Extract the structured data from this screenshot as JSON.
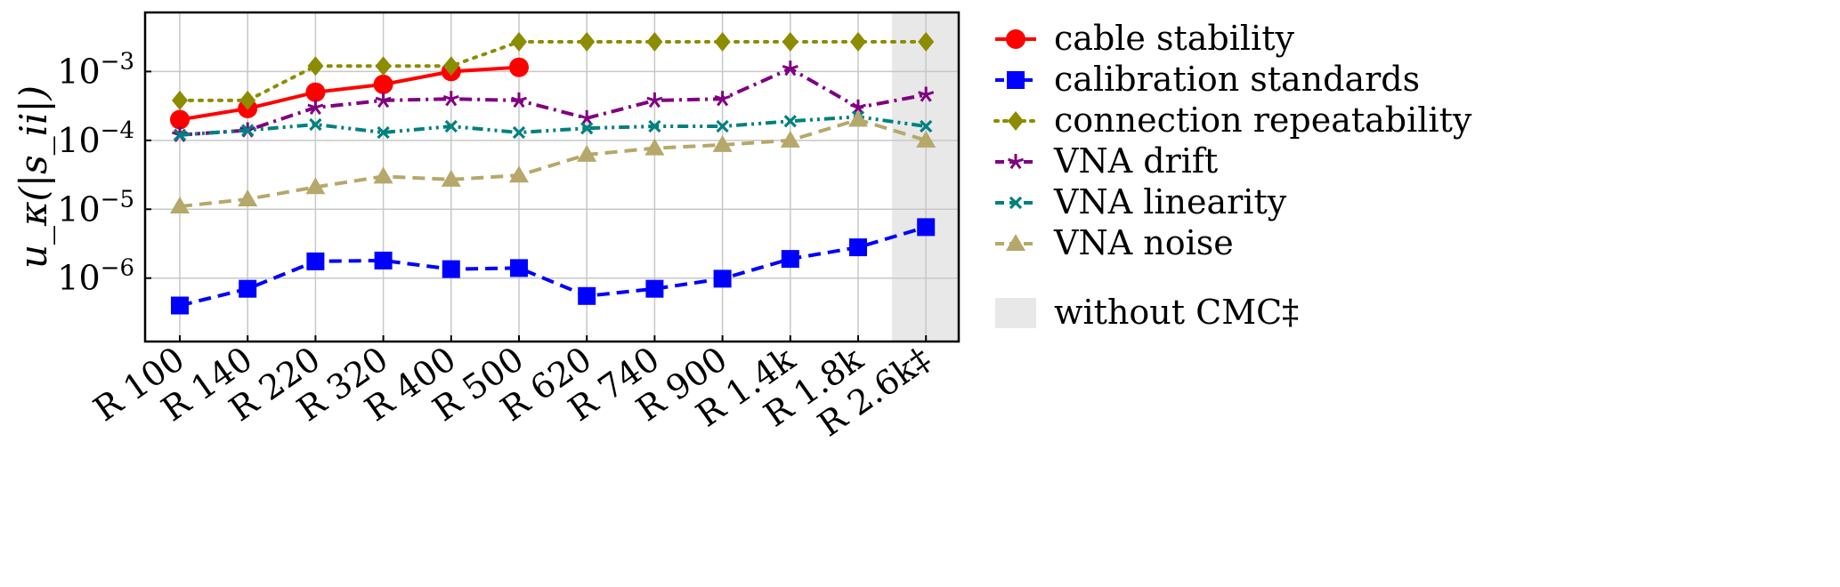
{
  "chart_data": {
    "type": "line",
    "ylabel": "u_κ(|s_ii|)",
    "yscale": "log",
    "ylim": [
      1.2e-07,
      0.0072
    ],
    "yticks": [
      {
        "value": 1e-06,
        "base": "10",
        "exp": "−6"
      },
      {
        "value": 1e-05,
        "base": "10",
        "exp": "−5"
      },
      {
        "value": 0.0001,
        "base": "10",
        "exp": "−4"
      },
      {
        "value": 0.001,
        "base": "10",
        "exp": "−3"
      }
    ],
    "grid": true,
    "legend_position": "right",
    "categories": [
      "R 100",
      "R 140",
      "R 220",
      "R 320",
      "R 400",
      "R 500",
      "R 620",
      "R 740",
      "R 900",
      "R 1.4k",
      "R 1.8k",
      "R 2.6k‡"
    ],
    "shaded_category": "R 2.6k‡",
    "series": [
      {
        "name": "cable stability",
        "color": "#ff0000",
        "marker": "circle",
        "dash": "solid",
        "values": [
          0.0002,
          0.00029,
          0.0005,
          0.00065,
          0.001,
          0.00115,
          null,
          null,
          null,
          null,
          null,
          null
        ]
      },
      {
        "name": "calibration standards",
        "color": "#0000ff",
        "marker": "square",
        "dash": "dashed",
        "values": [
          4e-07,
          7e-07,
          1.75e-06,
          1.8e-06,
          1.35e-06,
          1.4e-06,
          5.5e-07,
          7e-07,
          9.8e-07,
          1.9e-06,
          2.8e-06,
          5.5e-06
        ]
      },
      {
        "name": "connection repeatability",
        "color": "#8c8c00",
        "marker": "diamond",
        "dash": "dotted",
        "values": [
          0.00038,
          0.00038,
          0.0012,
          0.0012,
          0.0012,
          0.0027,
          0.0027,
          0.0027,
          0.0027,
          0.0027,
          0.0027,
          0.0027
        ]
      },
      {
        "name": "VNA drift",
        "color": "#800080",
        "marker": "star",
        "dash": "dashdot",
        "values": [
          0.00012,
          0.00014,
          0.0003,
          0.00038,
          0.0004,
          0.00038,
          0.00021,
          0.00038,
          0.0004,
          0.0011,
          0.0003,
          0.00046
        ]
      },
      {
        "name": "VNA linearity",
        "color": "#008080",
        "marker": "x",
        "dash": "dashdotdot",
        "values": [
          0.00012,
          0.00014,
          0.00017,
          0.00013,
          0.00016,
          0.00013,
          0.00015,
          0.00016,
          0.00016,
          0.00019,
          0.00022,
          0.00016
        ]
      },
      {
        "name": "VNA noise",
        "color": "#b5a86a",
        "marker": "triangle",
        "dash": "dashed",
        "values": [
          1.1e-05,
          1.4e-05,
          2.1e-05,
          3e-05,
          2.7e-05,
          3.1e-05,
          6.2e-05,
          7.7e-05,
          8.6e-05,
          0.0001,
          0.0002,
          0.0001
        ]
      }
    ],
    "shaded_legend": {
      "label": "without CMC‡",
      "color": "#e8e8e8"
    }
  }
}
